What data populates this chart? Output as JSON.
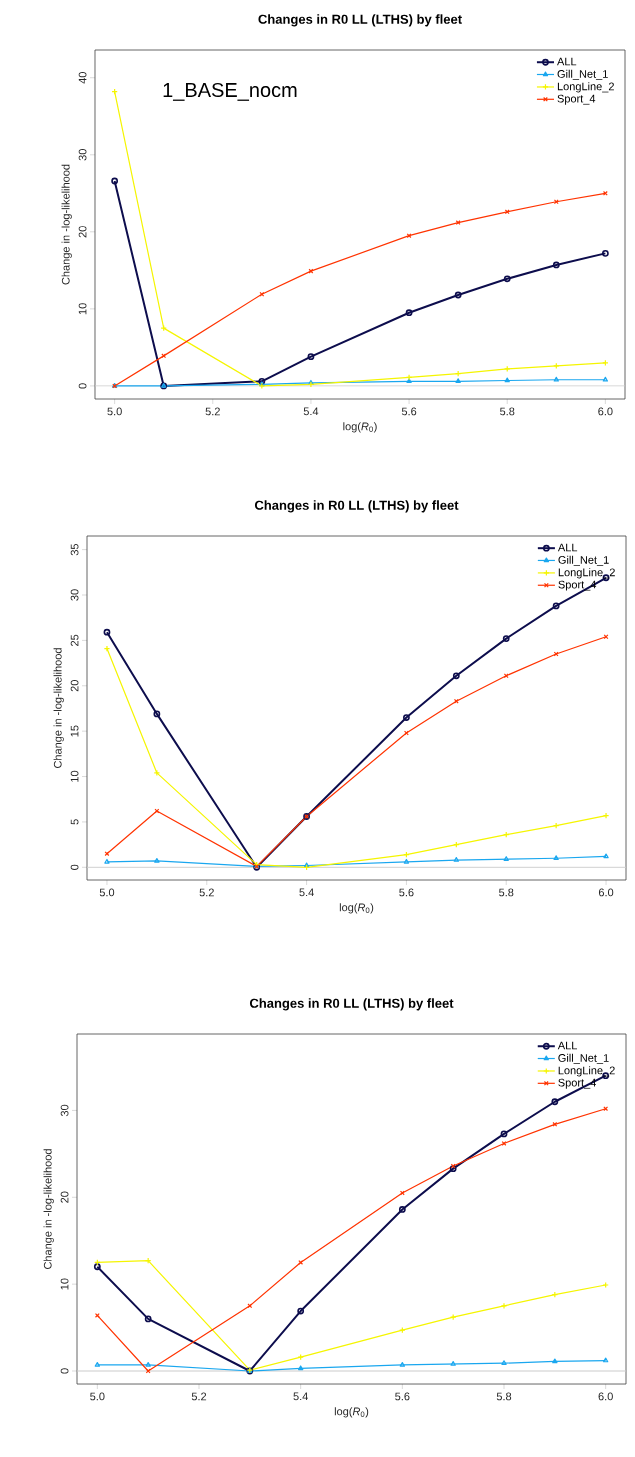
{
  "chart_data": [
    {
      "type": "line",
      "title": "Changes in R0 LL (LTHS) by fleet",
      "xlabel": "log(*R*$_{0}$)",
      "ylabel": "Change in -log-likelihood",
      "annotations": [
        "1_BASE_nocm"
      ],
      "x": [
        5.0,
        5.1,
        5.3,
        5.4,
        5.6,
        5.7,
        5.8,
        5.9,
        6.0
      ],
      "series": [
        {
          "name": "ALL",
          "color": "#0d0d4d",
          "marker": "circle",
          "values": [
            26.6,
            0,
            0.6,
            3.8,
            9.5,
            11.8,
            13.9,
            15.7,
            17.2
          ]
        },
        {
          "name": "Gill_Net_1",
          "color": "#1aa7ef",
          "marker": "triangle",
          "values": [
            0,
            0,
            0.2,
            0.4,
            0.6,
            0.6,
            0.7,
            0.8,
            0.8
          ]
        },
        {
          "name": "LongLine_2",
          "color": "#f5f500",
          "marker": "plus",
          "values": [
            38.2,
            7.5,
            0,
            0.2,
            1.1,
            1.6,
            2.2,
            2.6,
            3.0
          ]
        },
        {
          "name": "Sport_4",
          "color": "#ff3300",
          "marker": "cross",
          "values": [
            0,
            3.9,
            11.9,
            14.9,
            19.5,
            21.2,
            22.6,
            23.9,
            25.0
          ]
        }
      ],
      "xlim": [
        4.96,
        6.04
      ],
      "ylim": [
        -1.7,
        43.6
      ],
      "xticks": [
        {
          "value": 5.0,
          "label": "5.0"
        },
        {
          "value": 5.2,
          "label": "5.2"
        },
        {
          "value": 5.4,
          "label": "5.4"
        },
        {
          "value": 5.6,
          "label": "5.6"
        },
        {
          "value": 5.8,
          "label": "5.8"
        },
        {
          "value": 6.0,
          "label": "6.0"
        }
      ],
      "yticks": [
        0,
        10,
        20,
        30,
        40
      ],
      "legend": "top right",
      "ref_lines": [
        {
          "axis": "y",
          "value": 0,
          "color": "#cccccc"
        }
      ]
    },
    {
      "type": "line",
      "title": "Changes in R0 LL (LTHS) by fleet",
      "xlabel": "log(*R*$_{0}$)",
      "ylabel": "Change in -log-likelihood",
      "x": [
        5.0,
        5.1,
        5.3,
        5.4,
        5.6,
        5.7,
        5.8,
        5.9,
        6.0
      ],
      "series": [
        {
          "name": "ALL",
          "color": "#0d0d4d",
          "marker": "circle",
          "values": [
            25.9,
            16.9,
            0,
            5.6,
            16.5,
            21.1,
            25.2,
            28.8,
            31.9
          ]
        },
        {
          "name": "Gill_Net_1",
          "color": "#1aa7ef",
          "marker": "triangle",
          "values": [
            0.6,
            0.7,
            0.1,
            0.2,
            0.6,
            0.8,
            0.9,
            1.0,
            1.2
          ]
        },
        {
          "name": "LongLine_2",
          "color": "#f5f500",
          "marker": "plus",
          "values": [
            24.1,
            10.4,
            0.3,
            0,
            1.4,
            2.5,
            3.6,
            4.6,
            5.7
          ]
        },
        {
          "name": "Sport_4",
          "color": "#ff3300",
          "marker": "cross",
          "values": [
            1.5,
            6.2,
            0.1,
            5.6,
            14.8,
            18.3,
            21.1,
            23.5,
            25.4
          ]
        }
      ],
      "xlim": [
        4.96,
        6.04
      ],
      "ylim": [
        -1.4,
        36.5
      ],
      "xticks": [
        {
          "value": 5.0,
          "label": "5.0"
        },
        {
          "value": 5.2,
          "label": "5.2"
        },
        {
          "value": 5.4,
          "label": "5.4"
        },
        {
          "value": 5.6,
          "label": "5.6"
        },
        {
          "value": 5.8,
          "label": "5.8"
        },
        {
          "value": 6.0,
          "label": "6.0"
        }
      ],
      "yticks": [
        0,
        5,
        10,
        15,
        20,
        25,
        30,
        35
      ],
      "legend": "top right",
      "ref_lines": [
        {
          "axis": "y",
          "value": 0,
          "color": "#cccccc"
        }
      ]
    },
    {
      "type": "line",
      "title": "Changes in R0 LL (LTHS) by fleet",
      "xlabel": "log(*R*$_{0}$)",
      "ylabel": "Change in -log-likelihood",
      "x": [
        5.0,
        5.1,
        5.3,
        5.4,
        5.6,
        5.7,
        5.8,
        5.9,
        6.0
      ],
      "series": [
        {
          "name": "ALL",
          "color": "#0d0d4d",
          "marker": "circle",
          "values": [
            12.0,
            6.0,
            0,
            6.9,
            18.6,
            23.3,
            27.3,
            31.0,
            34.0
          ]
        },
        {
          "name": "Gill_Net_1",
          "color": "#1aa7ef",
          "marker": "triangle",
          "values": [
            0.7,
            0.7,
            0,
            0.3,
            0.7,
            0.8,
            0.9,
            1.1,
            1.2
          ]
        },
        {
          "name": "LongLine_2",
          "color": "#f5f500",
          "marker": "plus",
          "values": [
            12.5,
            12.7,
            0.1,
            1.6,
            4.7,
            6.2,
            7.5,
            8.8,
            9.9
          ]
        },
        {
          "name": "Sport_4",
          "color": "#ff3300",
          "marker": "cross",
          "values": [
            6.4,
            0,
            7.5,
            12.5,
            20.5,
            23.6,
            26.2,
            28.4,
            30.2
          ]
        }
      ],
      "xlim": [
        4.96,
        6.04
      ],
      "ylim": [
        -1.5,
        38.8
      ],
      "xticks": [
        {
          "value": 5.0,
          "label": "5.0"
        },
        {
          "value": 5.2,
          "label": "5.2"
        },
        {
          "value": 5.4,
          "label": "5.4"
        },
        {
          "value": 5.6,
          "label": "5.6"
        },
        {
          "value": 5.8,
          "label": "5.8"
        },
        {
          "value": 6.0,
          "label": "6.0"
        }
      ],
      "yticks": [
        0,
        10,
        20,
        30
      ],
      "legend": "top right",
      "ref_lines": [
        {
          "axis": "y",
          "value": 0,
          "color": "#cccccc"
        }
      ]
    }
  ]
}
